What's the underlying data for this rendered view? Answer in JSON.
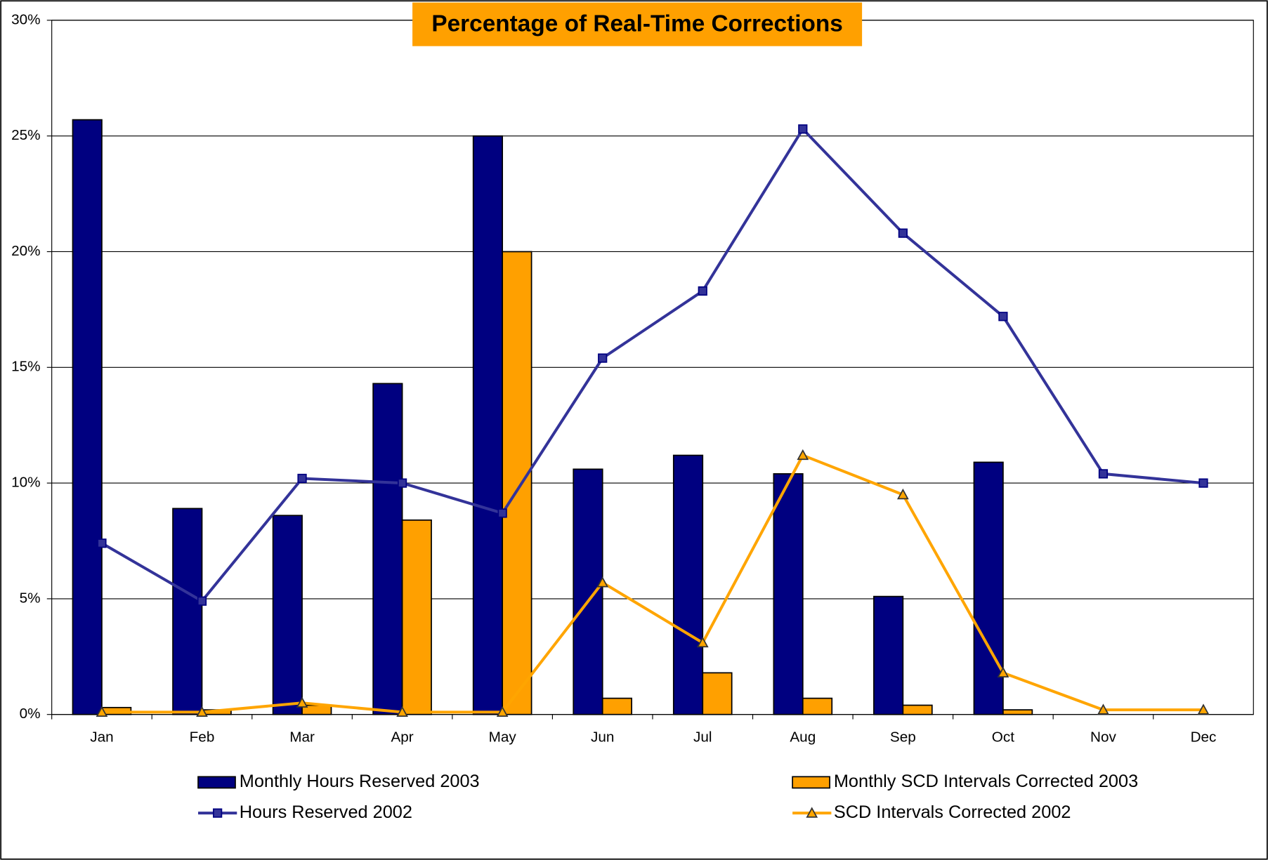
{
  "chart_data": {
    "type": "bar-line",
    "title": "Percentage of Real-Time Corrections",
    "categories": [
      "Jan",
      "Feb",
      "Mar",
      "Apr",
      "May",
      "Jun",
      "Jul",
      "Aug",
      "Sep",
      "Oct",
      "Nov",
      "Dec"
    ],
    "series": [
      {
        "name": "Monthly Hours Reserved 2003",
        "type": "bar",
        "color": "#000080",
        "values": [
          25.7,
          8.9,
          8.6,
          14.3,
          25.0,
          10.6,
          11.2,
          10.4,
          5.1,
          10.9,
          null,
          null
        ]
      },
      {
        "name": "Monthly SCD Intervals Corrected 2003",
        "type": "bar",
        "color": "#FFA000",
        "values": [
          0.3,
          0.2,
          0.4,
          8.4,
          20.0,
          0.7,
          1.8,
          0.7,
          0.4,
          0.2,
          null,
          null
        ]
      },
      {
        "name": "Hours Reserved 2002",
        "type": "line",
        "marker": "square",
        "color": "#333399",
        "values": [
          7.4,
          4.9,
          10.2,
          10.0,
          8.7,
          15.4,
          18.3,
          25.3,
          20.8,
          17.2,
          10.4,
          10.0
        ]
      },
      {
        "name": "SCD Intervals Corrected 2002",
        "type": "line",
        "marker": "triangle",
        "color": "#FFA500",
        "values": [
          0.1,
          0.1,
          0.5,
          0.1,
          0.1,
          5.7,
          3.1,
          11.2,
          9.5,
          1.8,
          0.2,
          0.2
        ]
      }
    ],
    "ylim": [
      0,
      30
    ],
    "yticks": [
      {
        "value": 0,
        "label": "0%"
      },
      {
        "value": 5,
        "label": "5%"
      },
      {
        "value": 10,
        "label": "10%"
      },
      {
        "value": 15,
        "label": "15%"
      },
      {
        "value": 20,
        "label": "20%"
      },
      {
        "value": 25,
        "label": "25%"
      },
      {
        "value": 30,
        "label": "30%"
      }
    ],
    "grid": true
  }
}
